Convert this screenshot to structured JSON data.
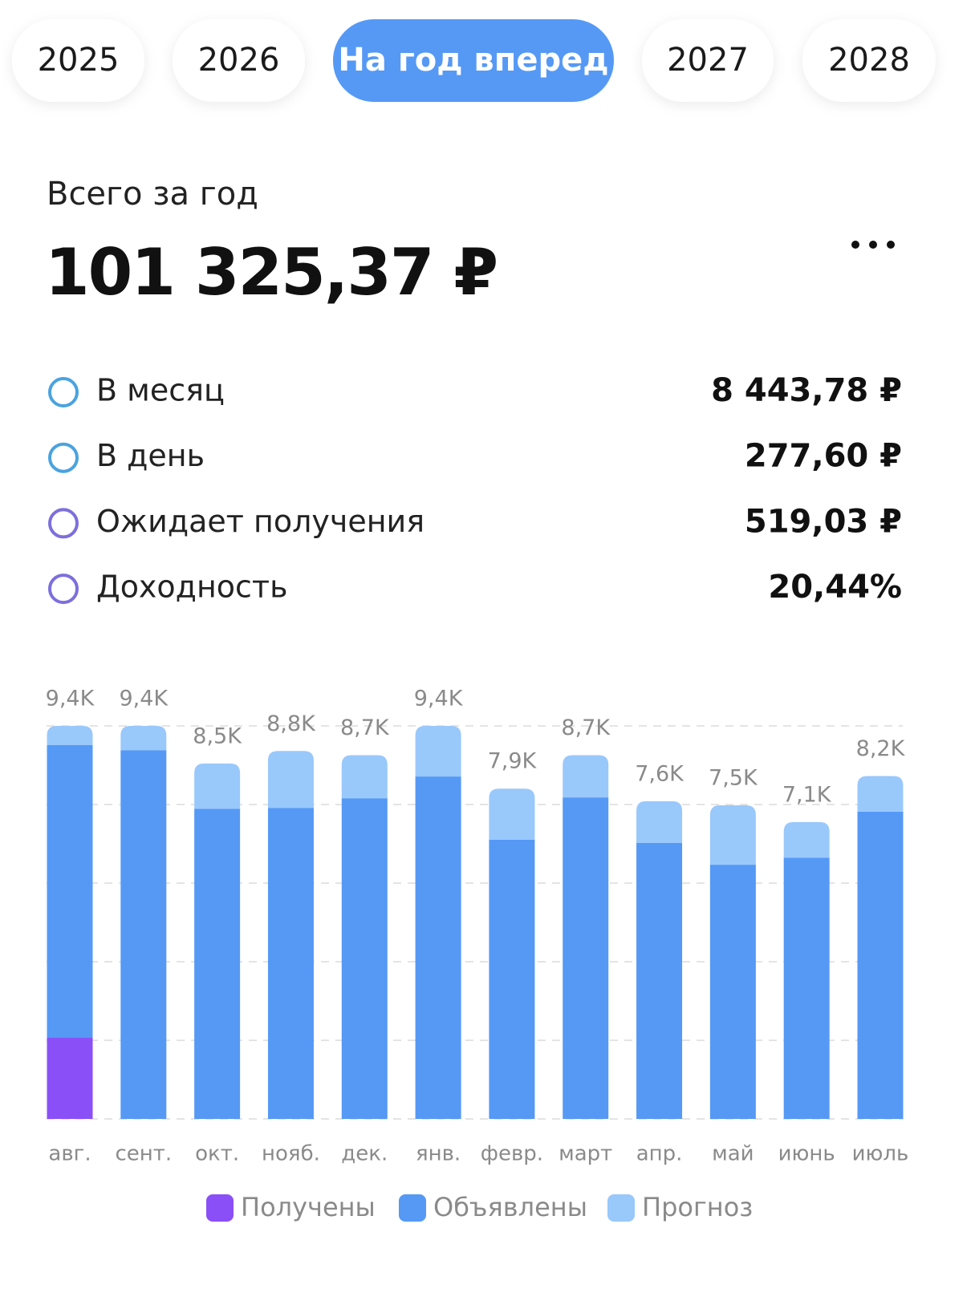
{
  "tabs": {
    "items": [
      "2025",
      "2026",
      "На год вперед",
      "2027",
      "2028"
    ],
    "selected": 2
  },
  "summary": {
    "title": "Всего за год",
    "total": "101 325,37 ₽",
    "rows": [
      {
        "label": "В месяц",
        "value": "8 443,78 ₽",
        "color": "#4aa3df"
      },
      {
        "label": "В день",
        "value": "277,60 ₽",
        "color": "#4aa3df"
      },
      {
        "label": "Ожидает получения",
        "value": "519,03 ₽",
        "color": "#7d6fdc"
      },
      {
        "label": "Доходность",
        "value": "20,44%",
        "color": "#7d6fdc"
      }
    ]
  },
  "chart_data": {
    "type": "stacked_bar",
    "categories": [
      "авг.",
      "сент.",
      "окт.",
      "нояб.",
      "дек.",
      "янв.",
      "февр.",
      "март",
      "апр.",
      "май",
      "июнь",
      "июль"
    ],
    "series": [
      {
        "name": "Получены",
        "color": "#8a4ff7",
        "values": [
          1950,
          0,
          0,
          0,
          0,
          0,
          0,
          0,
          0,
          0,
          0,
          0
        ]
      },
      {
        "name": "Объявлены",
        "color": "#5599f5",
        "values": [
          6990,
          8820,
          7420,
          7440,
          7670,
          8190,
          6680,
          7690,
          6600,
          6080,
          6250,
          7350
        ]
      },
      {
        "name": "Прогноз",
        "color": "#99c8fb",
        "values": [
          460,
          580,
          1080,
          1360,
          1030,
          1210,
          1220,
          1010,
          1000,
          1420,
          850,
          850
        ]
      }
    ],
    "totals": [
      9400,
      9400,
      8500,
      8800,
      8700,
      9400,
      7900,
      8700,
      7600,
      7500,
      7100,
      8200
    ],
    "total_labels": [
      "9,4K",
      "9,4K",
      "8,5K",
      "8,8K",
      "8,7K",
      "9,4K",
      "7,9K",
      "8,7K",
      "7,6K",
      "7,5K",
      "7,1K",
      "8,2K"
    ],
    "ylim": [
      0,
      9400
    ],
    "yticks": [
      0,
      1880,
      3760,
      5640,
      7520,
      9400
    ],
    "grid": true
  }
}
